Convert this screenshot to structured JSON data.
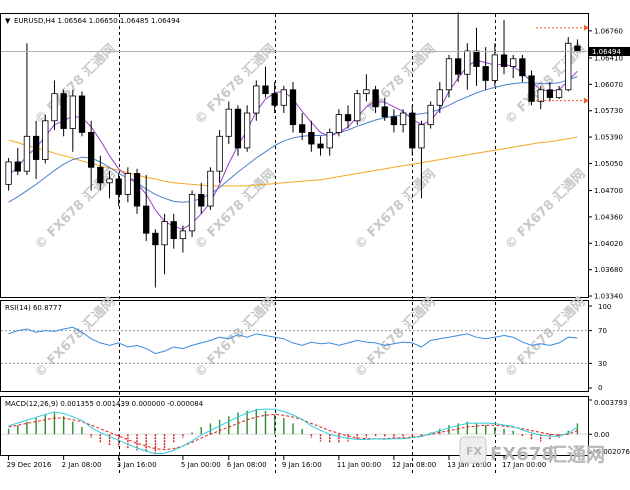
{
  "chart_data": [
    {
      "type": "candlestick",
      "symbol_line": "EURUSD,H4  1.06564 1.06650 1.06485 1.06494",
      "last_price_label": "1.06494",
      "y_ticks": [
        "1.06760",
        "1.06410",
        "1.06070",
        "1.05730",
        "1.05390",
        "1.05050",
        "1.04700",
        "1.04360",
        "1.04020",
        "1.03680",
        "1.03340"
      ],
      "ylim": [
        1.0334,
        1.069
      ],
      "candles": [
        {
          "o": 1.0478,
          "h": 1.0512,
          "l": 1.047,
          "c": 1.0507
        },
        {
          "o": 1.0507,
          "h": 1.0525,
          "l": 1.049,
          "c": 1.0495
        },
        {
          "o": 1.0495,
          "h": 1.066,
          "l": 1.049,
          "c": 1.054
        },
        {
          "o": 1.054,
          "h": 1.056,
          "l": 1.0485,
          "c": 1.051
        },
        {
          "o": 1.051,
          "h": 1.0568,
          "l": 1.0505,
          "c": 1.056
        },
        {
          "o": 1.056,
          "h": 1.0612,
          "l": 1.0548,
          "c": 1.0595
        },
        {
          "o": 1.0595,
          "h": 1.06,
          "l": 1.054,
          "c": 1.055
        },
        {
          "o": 1.055,
          "h": 1.06,
          "l": 1.052,
          "c": 1.0592
        },
        {
          "o": 1.0592,
          "h": 1.0598,
          "l": 1.054,
          "c": 1.0545
        },
        {
          "o": 1.0545,
          "h": 1.056,
          "l": 1.047,
          "c": 1.05
        },
        {
          "o": 1.05,
          "h": 1.0515,
          "l": 1.047,
          "c": 1.048
        },
        {
          "o": 1.048,
          "h": 1.0495,
          "l": 1.046,
          "c": 1.0485
        },
        {
          "o": 1.0485,
          "h": 1.0492,
          "l": 1.045,
          "c": 1.0465
        },
        {
          "o": 1.0465,
          "h": 1.05,
          "l": 1.0455,
          "c": 1.0492
        },
        {
          "o": 1.0492,
          "h": 1.0498,
          "l": 1.044,
          "c": 1.045
        },
        {
          "o": 1.045,
          "h": 1.049,
          "l": 1.0405,
          "c": 1.0415
        },
        {
          "o": 1.0415,
          "h": 1.042,
          "l": 1.0345,
          "c": 1.04
        },
        {
          "o": 1.04,
          "h": 1.044,
          "l": 1.0362,
          "c": 1.043
        },
        {
          "o": 1.043,
          "h": 1.044,
          "l": 1.0395,
          "c": 1.0408
        },
        {
          "o": 1.0408,
          "h": 1.0425,
          "l": 1.039,
          "c": 1.0418
        },
        {
          "o": 1.0418,
          "h": 1.047,
          "l": 1.041,
          "c": 1.0465
        },
        {
          "o": 1.0465,
          "h": 1.048,
          "l": 1.044,
          "c": 1.045
        },
        {
          "o": 1.045,
          "h": 1.05,
          "l": 1.0445,
          "c": 1.0495
        },
        {
          "o": 1.0495,
          "h": 1.0548,
          "l": 1.048,
          "c": 1.054
        },
        {
          "o": 1.054,
          "h": 1.0585,
          "l": 1.053,
          "c": 1.0575
        },
        {
          "o": 1.0575,
          "h": 1.058,
          "l": 1.0515,
          "c": 1.0525
        },
        {
          "o": 1.0525,
          "h": 1.058,
          "l": 1.052,
          "c": 1.057
        },
        {
          "o": 1.057,
          "h": 1.0612,
          "l": 1.056,
          "c": 1.0605
        },
        {
          "o": 1.0605,
          "h": 1.063,
          "l": 1.059,
          "c": 1.0595
        },
        {
          "o": 1.0595,
          "h": 1.061,
          "l": 1.057,
          "c": 1.058
        },
        {
          "o": 1.058,
          "h": 1.0605,
          "l": 1.057,
          "c": 1.06
        },
        {
          "o": 1.06,
          "h": 1.061,
          "l": 1.0545,
          "c": 1.0555
        },
        {
          "o": 1.0555,
          "h": 1.057,
          "l": 1.0535,
          "c": 1.0545
        },
        {
          "o": 1.0545,
          "h": 1.056,
          "l": 1.052,
          "c": 1.053
        },
        {
          "o": 1.053,
          "h": 1.054,
          "l": 1.0515,
          "c": 1.0525
        },
        {
          "o": 1.0525,
          "h": 1.055,
          "l": 1.0515,
          "c": 1.0545
        },
        {
          "o": 1.0545,
          "h": 1.0575,
          "l": 1.054,
          "c": 1.0568
        },
        {
          "o": 1.0568,
          "h": 1.058,
          "l": 1.055,
          "c": 1.056
        },
        {
          "o": 1.056,
          "h": 1.06,
          "l": 1.0555,
          "c": 1.0595
        },
        {
          "o": 1.0595,
          "h": 1.062,
          "l": 1.0585,
          "c": 1.06
        },
        {
          "o": 1.06,
          "h": 1.0605,
          "l": 1.057,
          "c": 1.0578
        },
        {
          "o": 1.0578,
          "h": 1.059,
          "l": 1.056,
          "c": 1.0565
        },
        {
          "o": 1.0565,
          "h": 1.0575,
          "l": 1.0545,
          "c": 1.0555
        },
        {
          "o": 1.0555,
          "h": 1.0575,
          "l": 1.0545,
          "c": 1.057
        },
        {
          "o": 1.057,
          "h": 1.058,
          "l": 1.0515,
          "c": 1.0525
        },
        {
          "o": 1.0525,
          "h": 1.056,
          "l": 1.046,
          "c": 1.0555
        },
        {
          "o": 1.0555,
          "h": 1.0585,
          "l": 1.055,
          "c": 1.058
        },
        {
          "o": 1.058,
          "h": 1.061,
          "l": 1.057,
          "c": 1.06
        },
        {
          "o": 1.06,
          "h": 1.0645,
          "l": 1.059,
          "c": 1.064
        },
        {
          "o": 1.064,
          "h": 1.07,
          "l": 1.061,
          "c": 1.062
        },
        {
          "o": 1.062,
          "h": 1.066,
          "l": 1.06,
          "c": 1.065
        },
        {
          "o": 1.065,
          "h": 1.068,
          "l": 1.0605,
          "c": 1.063
        },
        {
          "o": 1.063,
          "h": 1.0655,
          "l": 1.06,
          "c": 1.0612
        },
        {
          "o": 1.0612,
          "h": 1.066,
          "l": 1.0605,
          "c": 1.0645
        },
        {
          "o": 1.0645,
          "h": 1.069,
          "l": 1.062,
          "c": 1.063
        },
        {
          "o": 1.063,
          "h": 1.0645,
          "l": 1.0615,
          "c": 1.064
        },
        {
          "o": 1.064,
          "h": 1.0645,
          "l": 1.061,
          "c": 1.0618
        },
        {
          "o": 1.0618,
          "h": 1.0625,
          "l": 1.058,
          "c": 1.0585
        },
        {
          "o": 1.0585,
          "h": 1.0605,
          "l": 1.0575,
          "c": 1.06
        },
        {
          "o": 1.06,
          "h": 1.061,
          "l": 1.0585,
          "c": 1.059
        },
        {
          "o": 1.059,
          "h": 1.0605,
          "l": 1.0588,
          "c": 1.06
        },
        {
          "o": 1.06,
          "h": 1.0668,
          "l": 1.0598,
          "c": 1.066
        },
        {
          "o": 1.06564,
          "h": 1.0665,
          "l": 1.06485,
          "c": 1.06494
        }
      ],
      "ma_fast": [
        1.049,
        1.05,
        1.0515,
        1.0525,
        1.054,
        1.0555,
        1.056,
        1.0566,
        1.0564,
        1.0552,
        1.0535,
        1.0515,
        1.0498,
        1.0488,
        1.048,
        1.0465,
        1.0445,
        1.043,
        1.0424,
        1.042,
        1.0428,
        1.044,
        1.0455,
        1.0478,
        1.0505,
        1.0528,
        1.0548,
        1.0572,
        1.0588,
        1.0596,
        1.0598,
        1.0588,
        1.0572,
        1.0558,
        1.0545,
        1.054,
        1.0545,
        1.0552,
        1.0565,
        1.0578,
        1.0585,
        1.0584,
        1.0578,
        1.0572,
        1.0562,
        1.0555,
        1.056,
        1.0575,
        1.0598,
        1.0615,
        1.063,
        1.0638,
        1.0635,
        1.0632,
        1.0633,
        1.063,
        1.0622,
        1.061,
        1.06,
        1.0598,
        1.06,
        1.0612,
        1.0624
      ],
      "ma_mid": [
        1.0455,
        1.0462,
        1.047,
        1.0478,
        1.0487,
        1.0496,
        1.0504,
        1.051,
        1.0513,
        1.0512,
        1.0507,
        1.05,
        1.0492,
        1.0486,
        1.048,
        1.0472,
        1.0465,
        1.046,
        1.0456,
        1.0455,
        1.0456,
        1.046,
        1.0466,
        1.0474,
        1.0484,
        1.0494,
        1.0503,
        1.0512,
        1.052,
        1.0528,
        1.0534,
        1.0538,
        1.054,
        1.0541,
        1.0541,
        1.0542,
        1.0545,
        1.0548,
        1.0553,
        1.0557,
        1.0561,
        1.0564,
        1.0566,
        1.0567,
        1.0568,
        1.0569,
        1.0571,
        1.0575,
        1.058,
        1.0586,
        1.0591,
        1.0596,
        1.06,
        1.0603,
        1.0606,
        1.0608,
        1.0609,
        1.0609,
        1.0608,
        1.0608,
        1.0609,
        1.0613,
        1.0617
      ],
      "ma_slow": [
        1.0535,
        1.0532,
        1.0528,
        1.0525,
        1.0522,
        1.0518,
        1.0515,
        1.0512,
        1.0508,
        1.0505,
        1.0502,
        1.0499,
        1.0496,
        1.0493,
        1.049,
        1.0487,
        1.0485,
        1.0482,
        1.048,
        1.0479,
        1.0478,
        1.0477,
        1.0476,
        1.0476,
        1.0476,
        1.0476,
        1.0476,
        1.0477,
        1.0478,
        1.0479,
        1.048,
        1.0481,
        1.0482,
        1.0483,
        1.0484,
        1.0486,
        1.0488,
        1.049,
        1.0492,
        1.0494,
        1.0496,
        1.0498,
        1.05,
        1.0502,
        1.0504,
        1.0506,
        1.0508,
        1.051,
        1.0512,
        1.0514,
        1.0516,
        1.0518,
        1.052,
        1.0522,
        1.0524,
        1.0526,
        1.0528,
        1.053,
        1.0532,
        1.0533,
        1.0535,
        1.0537,
        1.0539
      ]
    },
    {
      "type": "line",
      "label": "RSI(14) 60.8777",
      "y_ticks": [
        "100",
        "70",
        "30",
        "0"
      ],
      "levels": [
        70,
        30
      ],
      "ylim": [
        0,
        100
      ],
      "values": [
        66,
        70,
        72,
        68,
        70,
        69,
        72,
        74,
        68,
        60,
        55,
        52,
        55,
        50,
        52,
        48,
        42,
        45,
        50,
        48,
        52,
        55,
        58,
        62,
        60,
        65,
        62,
        66,
        64,
        62,
        60,
        55,
        52,
        56,
        54,
        55,
        52,
        55,
        58,
        56,
        55,
        52,
        54,
        56,
        55,
        50,
        58,
        60,
        62,
        64,
        66,
        62,
        60,
        62,
        64,
        62,
        56,
        52,
        54,
        52,
        55,
        62,
        61
      ]
    },
    {
      "type": "bar",
      "label": "MACD(12,26,9) 0.001355 0.001439 0.000000 -0.000084",
      "y_ticks": [
        "0.003793",
        "0.00",
        "-0.002076"
      ],
      "ylim": [
        -0.002076,
        0.003793
      ],
      "histogram": [
        0.0006,
        0.001,
        0.0014,
        0.0018,
        0.0022,
        0.0024,
        0.002,
        0.0014,
        0.0008,
        -0.0004,
        -0.001,
        -0.0012,
        -0.0014,
        -0.0016,
        -0.0018,
        -0.002,
        -0.0021,
        -0.0016,
        -0.001,
        -0.0004,
        0.0002,
        0.0008,
        0.0012,
        0.0016,
        0.002,
        0.0024,
        0.0026,
        0.0028,
        0.0026,
        0.0022,
        0.0018,
        0.0012,
        0.0006,
        -0.0004,
        -0.0008,
        -0.001,
        -0.001,
        -0.0008,
        -0.0006,
        -0.0004,
        -0.0002,
        -0.0003,
        -0.0004,
        -0.0004,
        -0.0003,
        -0.0002,
        0.0002,
        0.0006,
        0.001,
        0.0012,
        0.0014,
        0.0012,
        0.001,
        0.0008,
        0.0006,
        0.0004,
        -0.0002,
        -0.0006,
        -0.0008,
        -0.0006,
        -0.0004,
        0.0004,
        0.0012
      ],
      "signal": [
        0.0008,
        0.001,
        0.0012,
        0.0014,
        0.0016,
        0.0018,
        0.0018,
        0.0016,
        0.0014,
        0.001,
        0.0006,
        0.0002,
        -0.0002,
        -0.0006,
        -0.001,
        -0.0013,
        -0.0016,
        -0.0017,
        -0.0016,
        -0.0013,
        -0.0009,
        -0.0004,
        0.0,
        0.0004,
        0.0008,
        0.0012,
        0.0016,
        0.0019,
        0.0021,
        0.0022,
        0.0021,
        0.0019,
        0.0016,
        0.0012,
        0.0008,
        0.0004,
        0.0001,
        -0.0002,
        -0.0004,
        -0.0005,
        -0.0005,
        -0.0005,
        -0.0004,
        -0.0004,
        -0.0003,
        -0.0002,
        0.0,
        0.0002,
        0.0004,
        0.0006,
        0.0008,
        0.0009,
        0.001,
        0.001,
        0.0009,
        0.0008,
        0.0006,
        0.0004,
        0.0002,
        0.0,
        -0.0001,
        0.0,
        0.0004
      ]
    }
  ],
  "x_labels": [
    "29 Dec 2016",
    "2 Jan 08:00",
    "3 Jan 16:00",
    "5 Jan 00:00",
    "6 Jan 08:00",
    "9 Jan 16:00",
    "11 Jan 00:00",
    "12 Jan 08:00",
    "13 Jan 16:00",
    "17 Jan 00:00"
  ],
  "watermark": "FX678 汇通网",
  "logo": {
    "fx": "FX678",
    "cn": "汇通网"
  },
  "colors": {
    "up": "#ffffff",
    "down": "#000000",
    "ma_fast": "#9b3fd1",
    "ma_mid": "#4a7fc8",
    "ma_slow": "#f5a623",
    "rsi": "#3b8be0",
    "macd_pos": "#2e8b2e",
    "macd_neg": "#d11",
    "signal": "#e02020",
    "macd_line": "#2ecfe0",
    "marker": "#ff5a1f"
  }
}
